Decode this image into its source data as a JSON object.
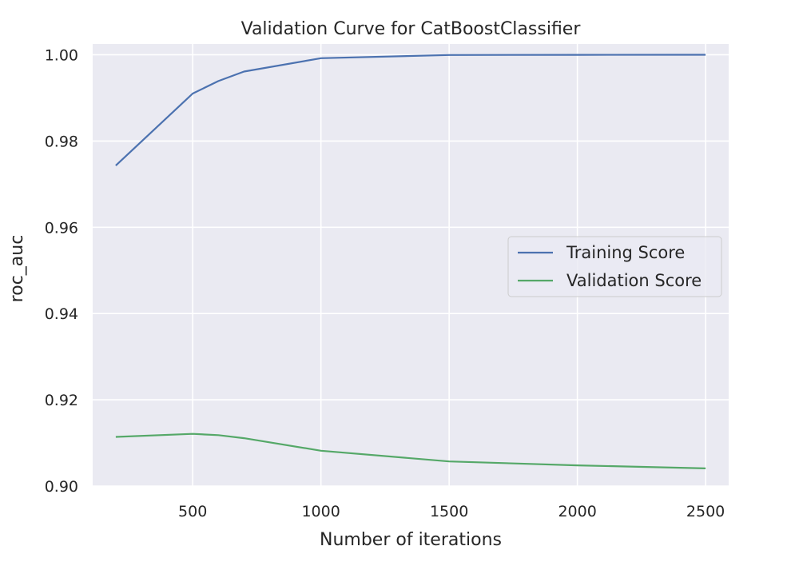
{
  "chart_data": {
    "type": "line",
    "title": "Validation Curve for CatBoostClassifier",
    "xlabel": "Number of iterations",
    "ylabel": "roc_auc",
    "x": [
      200,
      500,
      600,
      700,
      1000,
      1500,
      2000,
      2500
    ],
    "series": [
      {
        "name": "Training Score",
        "color": "#4c72b0",
        "values": [
          0.9743,
          0.991,
          0.9939,
          0.9961,
          0.9992,
          0.99995,
          0.99998,
          1.0
        ]
      },
      {
        "name": "Validation Score",
        "color": "#55a868",
        "values": [
          0.9114,
          0.9121,
          0.9118,
          0.9111,
          0.9082,
          0.9057,
          0.9048,
          0.9041
        ]
      }
    ],
    "xlim": [
      110,
      2590
    ],
    "ylim": [
      0.9,
      1.0025
    ],
    "xticks": [
      500,
      1000,
      1500,
      2000,
      2500
    ],
    "xtick_labels": [
      "500",
      "1000",
      "1500",
      "2000",
      "2500"
    ],
    "yticks": [
      0.9,
      0.92,
      0.94,
      0.96,
      0.98,
      1.0
    ],
    "ytick_labels": [
      "0.90",
      "0.92",
      "0.94",
      "0.96",
      "0.98",
      "1.00"
    ],
    "grid": true,
    "legend_position": "center-right",
    "background_color": "#eaeaf2"
  }
}
